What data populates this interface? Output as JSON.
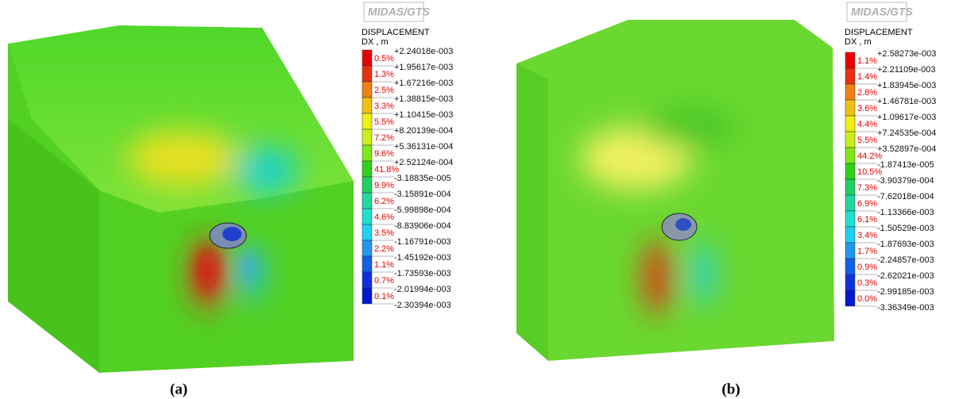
{
  "panels": [
    {
      "logo": "MIDAS/GTS",
      "legend_title": "DISPLACEMENT",
      "legend_unit": "DX , m",
      "bounds": [
        "+2.24018e-003",
        "+1.95617e-003",
        "+1.67216e-003",
        "+1.38815e-003",
        "+1.10415e-003",
        "+8.20139e-004",
        "+5.36131e-004",
        "+2.52124e-004",
        "-3.18835e-005",
        "-3.15891e-004",
        "-5.99898e-004",
        "-8.83906e-004",
        "-1.16791e-003",
        "-1.45192e-003",
        "-1.73593e-003",
        "-2.01994e-003",
        "-2.30394e-003"
      ],
      "percents": [
        "0.5%",
        "1.3%",
        "2.5%",
        "3.3%",
        "5.5%",
        "7.2%",
        "9.6%",
        "41.8%",
        "9.9%",
        "6.2%",
        "4.6%",
        "3.5%",
        "2.2%",
        "1.1%",
        "0.7%",
        "0.1%"
      ],
      "caption": "(a)"
    },
    {
      "logo": "MIDAS/GTS",
      "legend_title": "DISPLACEMENT",
      "legend_unit": "DX , m",
      "bounds": [
        "+2.58273e-003",
        "+2.21109e-003",
        "+1.83945e-003",
        "+1.46781e-003",
        "+1.09617e-003",
        "+7.24535e-004",
        "+3.52897e-004",
        "-1.87413e-005",
        "-3.90379e-004",
        "-7.62018e-004",
        "-1.13366e-003",
        "-1.50529e-003",
        "-1.87693e-003",
        "-2.24857e-003",
        "-2.62021e-003",
        "-2.99185e-003",
        "-3.36349e-003"
      ],
      "percents": [
        "1.1%",
        "1.4%",
        "2.8%",
        "3.6%",
        "4.4%",
        "5.5%",
        "44.2%",
        "10.5%",
        "7.3%",
        "6.9%",
        "6.1%",
        "3.4%",
        "1.7%",
        "0.9%",
        "0.3%",
        "0.0%"
      ],
      "caption": "(b)"
    }
  ]
}
